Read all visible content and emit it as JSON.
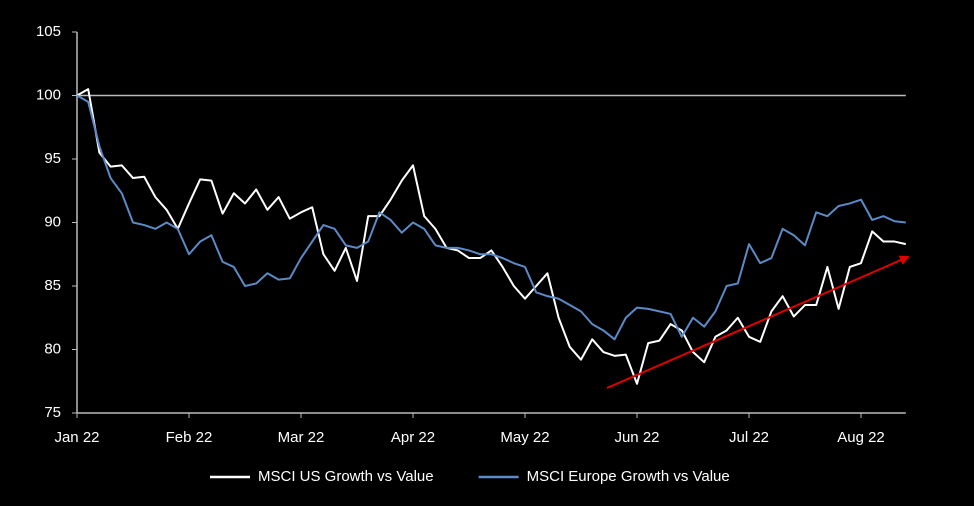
{
  "chart_data": {
    "type": "line",
    "categories": [
      "Jan 22",
      null,
      null,
      null,
      null,
      null,
      null,
      null,
      null,
      null,
      "Feb 22",
      null,
      null,
      null,
      null,
      null,
      null,
      null,
      null,
      null,
      "Mar 22",
      null,
      null,
      null,
      null,
      null,
      null,
      null,
      null,
      null,
      "Apr 22",
      null,
      null,
      null,
      null,
      null,
      null,
      null,
      null,
      null,
      "May 22",
      null,
      null,
      null,
      null,
      null,
      null,
      null,
      null,
      null,
      "Jun 22",
      null,
      null,
      null,
      null,
      null,
      null,
      null,
      null,
      null,
      "Jul 22",
      null,
      null,
      null,
      null,
      null,
      null,
      null,
      null,
      null,
      "Aug 22",
      null,
      null,
      null,
      null
    ],
    "series": [
      {
        "name": "MSCI US Growth vs Value",
        "color": "#ffffff",
        "values": [
          100,
          100.5,
          95.5,
          94.4,
          94.5,
          93.5,
          93.6,
          92,
          91,
          89.5,
          91.5,
          93.4,
          93.3,
          90.7,
          92.3,
          91.5,
          92.6,
          91,
          92,
          90.3,
          90.8,
          91.2,
          87.5,
          86.2,
          88,
          85.4,
          90.5,
          90.5,
          91.8,
          93.3,
          94.5,
          90.5,
          89.5,
          88,
          87.8,
          87.2,
          87.2,
          87.8,
          86.5,
          85,
          84,
          85,
          86,
          82.5,
          80.2,
          79.2,
          80.8,
          79.8,
          79.5,
          79.6,
          77.3,
          80.5,
          80.7,
          82,
          81.5,
          79.8,
          79,
          81,
          81.5,
          82.5,
          81,
          80.6,
          83,
          84.2,
          82.6,
          83.5,
          83.5,
          86.5,
          83.2,
          86.5,
          86.8,
          89.3,
          88.5,
          88.5,
          88.3
        ]
      },
      {
        "name": "MSCI Europe Growth vs Value",
        "color": "#5b8ac6",
        "values": [
          100,
          99.5,
          96,
          93.5,
          92.3,
          90,
          89.8,
          89.5,
          90,
          89.5,
          87.5,
          88.5,
          89,
          86.9,
          86.5,
          85,
          85.2,
          86,
          85.5,
          85.6,
          87.2,
          88.5,
          89.8,
          89.5,
          88.2,
          88,
          88.5,
          90.8,
          90.2,
          89.2,
          90,
          89.5,
          88.2,
          88,
          88,
          87.8,
          87.5,
          87.5,
          87.2,
          86.8,
          86.5,
          84.5,
          84.2,
          84,
          83.5,
          83,
          82,
          81.5,
          80.8,
          82.5,
          83.3,
          83.2,
          83,
          82.8,
          81,
          82.5,
          81.8,
          83,
          85,
          85.2,
          88.3,
          86.8,
          87.2,
          89.5,
          89,
          88.2,
          90.8,
          90.5,
          91.3,
          91.5,
          91.8,
          90.2,
          90.5,
          90.1,
          90
        ]
      }
    ],
    "ylim": [
      75,
      105
    ],
    "yticks": [
      75,
      80,
      85,
      90,
      95,
      100,
      105
    ],
    "reference_line": 100,
    "legend": "bottom"
  }
}
